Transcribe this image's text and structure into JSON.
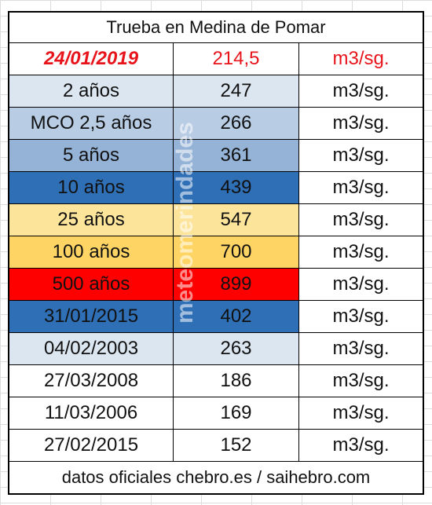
{
  "title": "Trueba en Medina de Pomar",
  "header_row": {
    "date": "24/01/2019",
    "value": "214,5",
    "unit": "m3/sg."
  },
  "rows": [
    {
      "label": "2 años",
      "value": "247",
      "unit": "m3/sg.",
      "color": "#dce6f1"
    },
    {
      "label": "MCO 2,5 años",
      "value": "266",
      "unit": "m3/sg.",
      "color": "#b8cce4"
    },
    {
      "label": "5 años",
      "value": "361",
      "unit": "m3/sg.",
      "color": "#95b3d7"
    },
    {
      "label": "10 años",
      "value": "439",
      "unit": "m3/sg.",
      "color": "#2f6fb6"
    },
    {
      "label": "25 años",
      "value": "547",
      "unit": "m3/sg.",
      "color": "#fde49b"
    },
    {
      "label": "100 años",
      "value": "700",
      "unit": "m3/sg.",
      "color": "#fed464"
    },
    {
      "label": "500 años",
      "value": "899",
      "unit": "m3/sg.",
      "color": "#ff0000"
    },
    {
      "label": "31/01/2015",
      "value": "402",
      "unit": "m3/sg.",
      "color": "#2f6fb6"
    },
    {
      "label": "04/02/2003",
      "value": "263",
      "unit": "m3/sg.",
      "color": "#dce6f1"
    },
    {
      "label": "27/03/2008",
      "value": "186",
      "unit": "m3/sg.",
      "color": "#ffffff"
    },
    {
      "label": "11/03/2006",
      "value": "169",
      "unit": "m3/sg.",
      "color": "#ffffff"
    },
    {
      "label": "27/02/2015",
      "value": "152",
      "unit": "m3/sg.",
      "color": "#ffffff"
    }
  ],
  "footer": "datos oficiales chebro.es / saihebro.com",
  "watermark": "meteomerindades"
}
